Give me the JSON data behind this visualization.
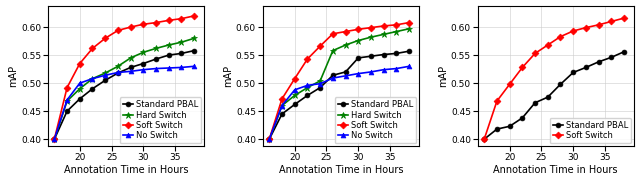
{
  "x": [
    16,
    18,
    20,
    22,
    24,
    26,
    28,
    30,
    32,
    34,
    36,
    38
  ],
  "plots": [
    {
      "series": [
        {
          "label": "Standard PBAL",
          "color": "black",
          "marker": "o",
          "y": [
            0.4,
            0.45,
            0.472,
            0.49,
            0.505,
            0.518,
            0.528,
            0.535,
            0.543,
            0.55,
            0.553,
            0.558
          ]
        },
        {
          "label": "Hard Switch",
          "color": "green",
          "marker": "*",
          "y": [
            0.4,
            0.468,
            0.49,
            0.508,
            0.518,
            0.53,
            0.545,
            0.555,
            0.562,
            0.568,
            0.573,
            0.58
          ]
        },
        {
          "label": "Soft Switch",
          "color": "red",
          "marker": "D",
          "y": [
            0.4,
            0.492,
            0.535,
            0.562,
            0.58,
            0.594,
            0.6,
            0.605,
            0.608,
            0.612,
            0.615,
            0.62
          ]
        },
        {
          "label": "No Switch",
          "color": "blue",
          "marker": "^",
          "y": [
            0.4,
            0.47,
            0.5,
            0.508,
            0.514,
            0.519,
            0.521,
            0.524,
            0.526,
            0.527,
            0.528,
            0.53
          ]
        }
      ]
    },
    {
      "series": [
        {
          "label": "Standard PBAL",
          "color": "black",
          "marker": "o",
          "y": [
            0.4,
            0.445,
            0.462,
            0.478,
            0.492,
            0.514,
            0.52,
            0.545,
            0.548,
            0.551,
            0.553,
            0.557
          ]
        },
        {
          "label": "Hard Switch",
          "color": "green",
          "marker": "*",
          "y": [
            0.4,
            0.46,
            0.478,
            0.492,
            0.504,
            0.558,
            0.568,
            0.576,
            0.582,
            0.587,
            0.592,
            0.597
          ]
        },
        {
          "label": "Soft Switch",
          "color": "red",
          "marker": "D",
          "y": [
            0.4,
            0.472,
            0.508,
            0.543,
            0.566,
            0.588,
            0.592,
            0.596,
            0.599,
            0.602,
            0.604,
            0.608
          ]
        },
        {
          "label": "No Switch",
          "color": "blue",
          "marker": "^",
          "y": [
            0.4,
            0.46,
            0.488,
            0.496,
            0.499,
            0.509,
            0.513,
            0.517,
            0.52,
            0.524,
            0.526,
            0.53
          ]
        }
      ]
    },
    {
      "series": [
        {
          "label": "Standard PBAL",
          "color": "black",
          "marker": "o",
          "y": [
            0.4,
            0.418,
            0.423,
            0.438,
            0.465,
            0.475,
            0.498,
            0.519,
            0.528,
            0.538,
            0.546,
            0.556
          ]
        },
        {
          "label": "Soft Switch",
          "color": "red",
          "marker": "D",
          "y": [
            0.4,
            0.468,
            0.498,
            0.528,
            0.553,
            0.568,
            0.583,
            0.593,
            0.599,
            0.604,
            0.61,
            0.616
          ]
        }
      ]
    }
  ],
  "xlabel": "Annotation Time in Hours",
  "ylabel": "mAP",
  "xlim": [
    15,
    39.5
  ],
  "ylim": [
    0.388,
    0.638
  ],
  "xticks": [
    20,
    25,
    30,
    35
  ],
  "yticks": [
    0.4,
    0.45,
    0.5,
    0.55,
    0.6
  ],
  "legend_fontsize": 6.0,
  "axis_fontsize": 7.0,
  "tick_fontsize": 6.5,
  "linewidth": 1.2,
  "markersize_circle": 3.5,
  "markersize_star": 5.0,
  "markersize_diamond": 3.5,
  "markersize_triangle": 3.5
}
